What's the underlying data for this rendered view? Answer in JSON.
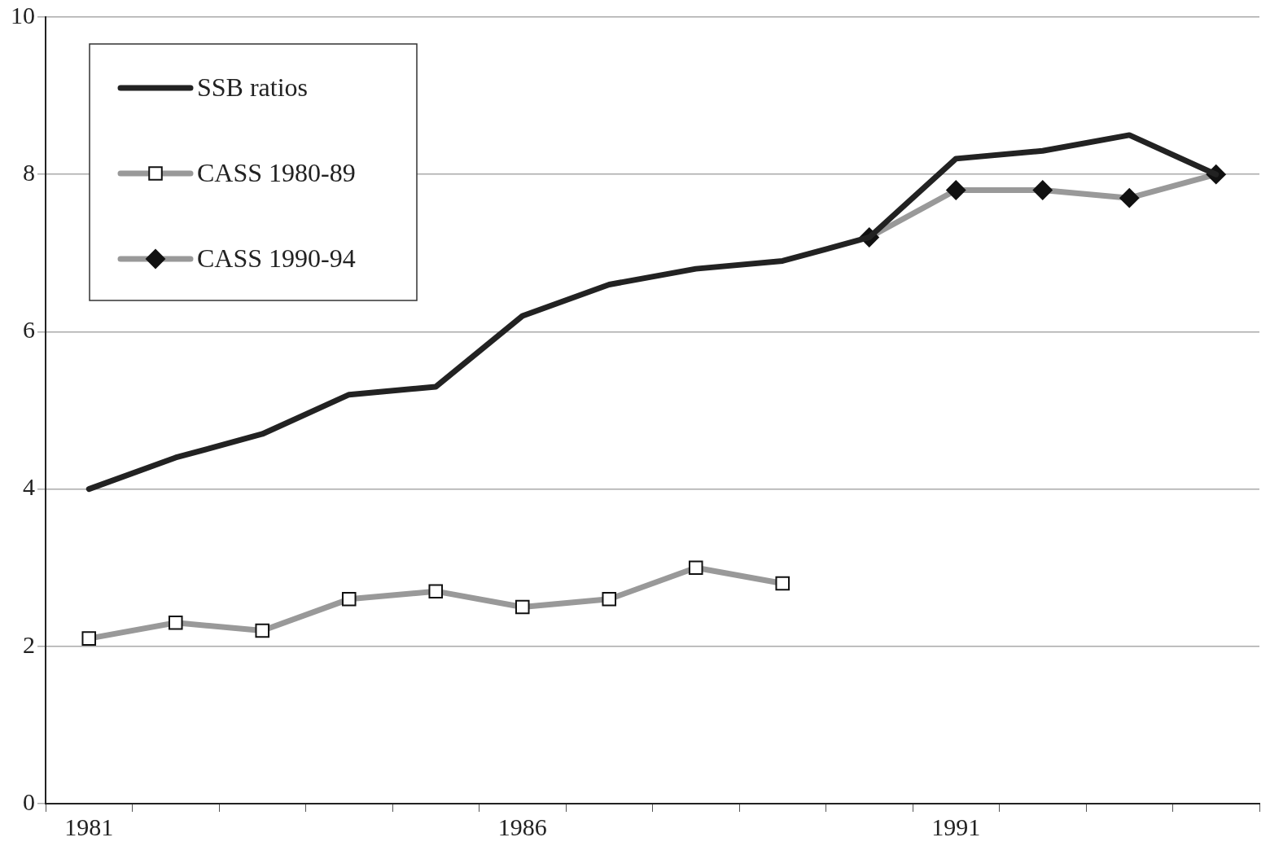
{
  "chart_data": {
    "type": "line",
    "categories": [
      "1981",
      null,
      null,
      null,
      null,
      "1986",
      null,
      null,
      null,
      null,
      "1991",
      null,
      null,
      null
    ],
    "series": [
      {
        "name": "SSB ratios",
        "color": "#222222",
        "marker": "none",
        "values": [
          4.0,
          4.4,
          4.7,
          5.2,
          5.3,
          6.2,
          6.6,
          6.8,
          6.9,
          7.2,
          8.2,
          8.3,
          8.5,
          8.0
        ]
      },
      {
        "name": "CASS 1980-89",
        "color": "#999999",
        "marker": "square",
        "values": [
          2.1,
          2.3,
          2.2,
          2.6,
          2.7,
          2.5,
          2.6,
          3.0,
          2.8,
          null,
          null,
          null,
          null,
          null
        ]
      },
      {
        "name": "CASS 1990-94",
        "color": "#999999",
        "marker": "diamond",
        "values": [
          null,
          null,
          null,
          null,
          null,
          null,
          null,
          null,
          null,
          7.2,
          7.8,
          7.8,
          7.7,
          8.0
        ]
      }
    ],
    "ylim": [
      0,
      10
    ],
    "yticks": [
      0,
      2,
      4,
      6,
      8,
      10
    ],
    "grid": "y",
    "legend": "top left"
  }
}
